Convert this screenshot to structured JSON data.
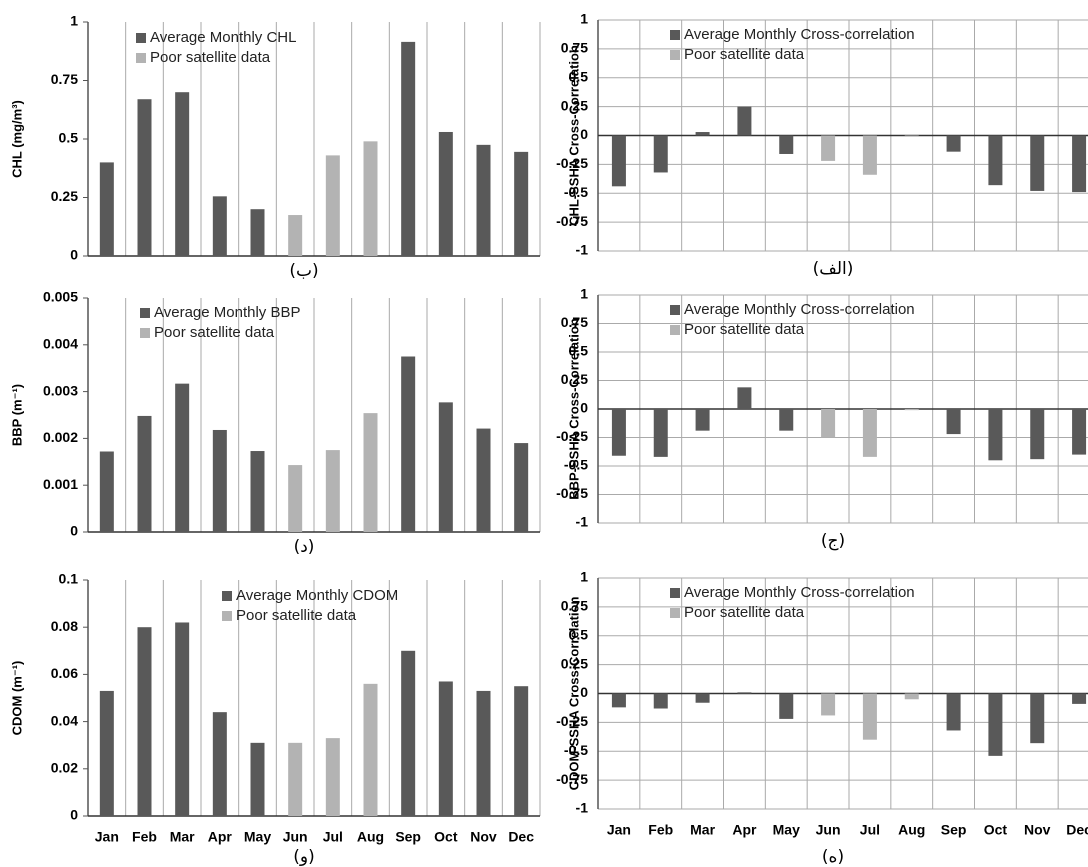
{
  "chart_data": [
    {
      "type": "bar",
      "label": "(ب)",
      "ylabel": "CHL (mg/m³)",
      "categories": [
        null,
        null,
        null,
        null,
        null,
        null,
        null,
        null,
        null,
        null,
        null,
        null
      ],
      "series": [
        {
          "name": "Average Monthly CHL",
          "color": "#595959",
          "values": [
            0.4,
            0.67,
            0.7,
            0.255,
            0.2,
            null,
            null,
            null,
            0.915,
            0.53,
            0.475,
            0.445
          ]
        },
        {
          "name": "Poor satellite data",
          "color": "#b3b3b3",
          "values": [
            null,
            null,
            null,
            null,
            null,
            0.175,
            0.43,
            0.49,
            null,
            null,
            null,
            null
          ]
        }
      ],
      "ylim": [
        0,
        1
      ],
      "yticks": [
        0,
        0.25,
        0.5,
        0.75,
        1
      ],
      "grid": false
    },
    {
      "type": "bar",
      "label": "(الف)",
      "ylabel": "CHL-SSHA Cross-Correlation",
      "categories": [
        null,
        null,
        null,
        null,
        null,
        null,
        null,
        null,
        null,
        null,
        null,
        null
      ],
      "series": [
        {
          "name": "Average Monthly Cross-correlation",
          "color": "#595959",
          "values": [
            -0.44,
            -0.32,
            0.03,
            0.25,
            -0.16,
            null,
            null,
            null,
            -0.14,
            -0.43,
            -0.48,
            -0.49
          ]
        },
        {
          "name": "Poor satellite data",
          "color": "#b3b3b3",
          "values": [
            null,
            null,
            null,
            null,
            null,
            -0.22,
            -0.34,
            0.01,
            null,
            null,
            null,
            null
          ]
        }
      ],
      "ylim": [
        -1,
        1
      ],
      "yticks": [
        -1,
        -0.75,
        -0.5,
        -0.25,
        0,
        0.25,
        0.5,
        0.75,
        1
      ],
      "grid": true
    },
    {
      "type": "bar",
      "label": "(د)",
      "ylabel": "BBP (m⁻¹)",
      "categories": [
        null,
        null,
        null,
        null,
        null,
        null,
        null,
        null,
        null,
        null,
        null,
        null
      ],
      "series": [
        {
          "name": "Average Monthly BBP",
          "color": "#595959",
          "values": [
            0.00172,
            0.00248,
            0.00317,
            0.00218,
            0.00173,
            null,
            null,
            null,
            0.00375,
            0.00277,
            0.00221,
            0.0019
          ]
        },
        {
          "name": "Poor satellite data",
          "color": "#b3b3b3",
          "values": [
            null,
            null,
            null,
            null,
            null,
            0.00143,
            0.00175,
            0.00254,
            null,
            null,
            null,
            null
          ]
        }
      ],
      "ylim": [
        0,
        0.005
      ],
      "yticks": [
        0,
        0.001,
        0.002,
        0.003,
        0.004,
        0.005
      ],
      "grid": false
    },
    {
      "type": "bar",
      "label": "(ج)",
      "ylabel": "BBP-SSHA Cross-Correlation",
      "categories": [
        null,
        null,
        null,
        null,
        null,
        null,
        null,
        null,
        null,
        null,
        null,
        null
      ],
      "series": [
        {
          "name": "Average Monthly Cross-correlation",
          "color": "#595959",
          "values": [
            -0.41,
            -0.42,
            -0.19,
            0.19,
            -0.19,
            null,
            null,
            null,
            -0.22,
            -0.45,
            -0.44,
            -0.4
          ]
        },
        {
          "name": "Poor satellite data",
          "color": "#b3b3b3",
          "values": [
            null,
            null,
            null,
            null,
            null,
            -0.25,
            -0.42,
            -0.01,
            null,
            null,
            null,
            null
          ]
        }
      ],
      "ylim": [
        -1,
        1
      ],
      "yticks": [
        -1,
        -0.75,
        -0.5,
        -0.25,
        0,
        0.25,
        0.5,
        0.75,
        1
      ],
      "grid": true
    },
    {
      "type": "bar",
      "label": "(و)",
      "ylabel": "CDOM (m⁻¹)",
      "categories": [
        "Jan",
        "Feb",
        "Mar",
        "Apr",
        "May",
        "Jun",
        "Jul",
        "Aug",
        "Sep",
        "Oct",
        "Nov",
        "Dec"
      ],
      "series": [
        {
          "name": "Average Monthly CDOM",
          "color": "#595959",
          "values": [
            0.053,
            0.08,
            0.082,
            0.044,
            0.031,
            null,
            null,
            null,
            0.07,
            0.057,
            0.053,
            0.055
          ]
        },
        {
          "name": "Poor satellite data",
          "color": "#b3b3b3",
          "values": [
            null,
            null,
            null,
            null,
            null,
            0.031,
            0.033,
            0.056,
            null,
            null,
            null,
            null
          ]
        }
      ],
      "ylim": [
        0,
        0.1
      ],
      "yticks": [
        0,
        0.02,
        0.04,
        0.06,
        0.08,
        0.1
      ],
      "grid": false
    },
    {
      "type": "bar",
      "label": "(ه)",
      "ylabel": "CDOM-SSHA Cross-Correlation",
      "categories": [
        "Jan",
        "Feb",
        "Mar",
        "Apr",
        "May",
        "Jun",
        "Jul",
        "Aug",
        "Sep",
        "Oct",
        "Nov",
        "Dec"
      ],
      "series": [
        {
          "name": "Average Monthly Cross-correlation",
          "color": "#595959",
          "values": [
            -0.12,
            -0.13,
            -0.08,
            0.01,
            -0.22,
            null,
            null,
            null,
            -0.32,
            -0.54,
            -0.43,
            -0.09
          ]
        },
        {
          "name": "Poor satellite data",
          "color": "#b3b3b3",
          "values": [
            null,
            null,
            null,
            null,
            null,
            -0.19,
            -0.4,
            -0.05,
            null,
            null,
            null,
            null
          ]
        }
      ],
      "ylim": [
        -1,
        1
      ],
      "yticks": [
        -1,
        -0.75,
        -0.5,
        -0.25,
        0,
        0.25,
        0.5,
        0.75,
        1
      ],
      "grid": true
    }
  ]
}
